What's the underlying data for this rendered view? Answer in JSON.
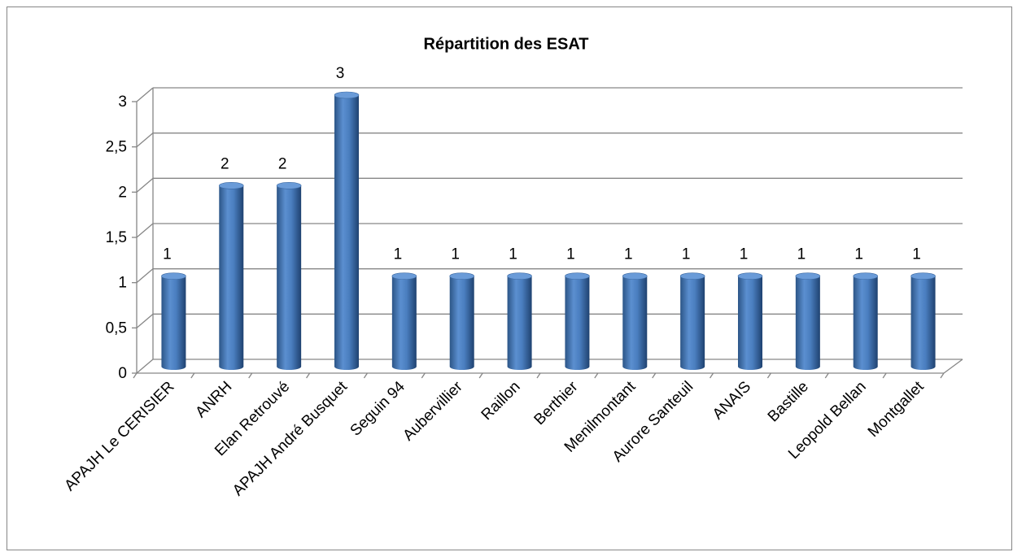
{
  "chart_data": {
    "type": "bar",
    "title": "Répartition des ESAT",
    "categories": [
      "APAJH Le CERISIER",
      "ANRH",
      "Elan Retrouvé",
      "APAJH André Busquet",
      "Seguin 94",
      "Aubervillier",
      "Raillon",
      "Berthier",
      "Menilmontant",
      "Aurore  Santeuil",
      "ANAIS",
      "Bastille",
      "Leopold Bellan",
      "Montgallet"
    ],
    "values": [
      1,
      2,
      2,
      3,
      1,
      1,
      1,
      1,
      1,
      1,
      1,
      1,
      1,
      1
    ],
    "color": "#4f81bd",
    "ylim": [
      0,
      3
    ],
    "yticks": [
      0,
      {
        "value": 0.5,
        "label": "0,5"
      },
      1,
      {
        "value": 1.5,
        "label": "1,5"
      },
      2,
      {
        "value": 2.5,
        "label": "2,5"
      },
      3
    ],
    "grid": true
  }
}
